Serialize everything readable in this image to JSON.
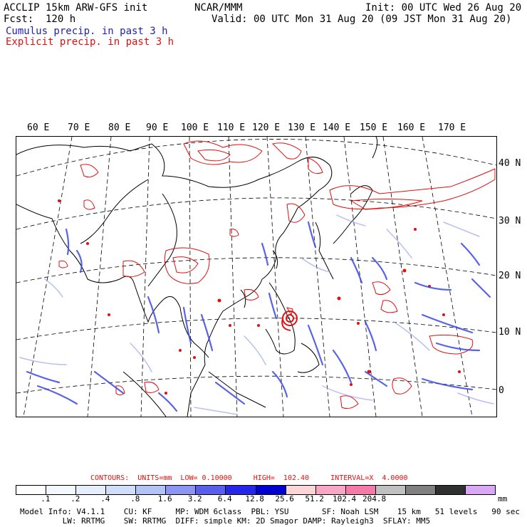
{
  "header": {
    "title": "ACCLIP 15km ARW-GFS init",
    "forecast": "Fcst:  120 h",
    "org": "NCAR/MMM",
    "init": "Init: 00 UTC Wed 26 Aug 20",
    "valid": "Valid: 00 UTC Mon 31 Aug 20 (09 JST Mon 31 Aug 20)",
    "legend_cumulus": "Cumulus precip. in past 3 h",
    "legend_explicit": "Explicit precip. in past 3 h"
  },
  "axes": {
    "longitude_labels": [
      "60 E",
      "70 E",
      "80 E",
      "90 E",
      "100 E",
      "110 E",
      "120 E",
      "130 E",
      "140 E",
      "150 E",
      "160 E",
      "170 E"
    ],
    "latitude_labels": [
      "40 N",
      "30 N",
      "20 N",
      "10 N",
      "0"
    ]
  },
  "contours": "CONTOURS:  UNITS=mm  LOW= 0.10000     HIGH=  102.40     INTERVAL=X  4.0000",
  "colorbar": {
    "colors": [
      "#ffffff",
      "#f3f8fe",
      "#e4eefc",
      "#d0def9",
      "#b4c3f6",
      "#8c96f2",
      "#5a5eec",
      "#2626e8",
      "#0000d0",
      "#fcd6d6",
      "#f7a6c4",
      "#f57aa8",
      "#c0c0c0",
      "#808080",
      "#303030",
      "#d9a8f5"
    ],
    "tick_labels": [
      ".1",
      ".2",
      ".4",
      ".8",
      "1.6",
      "3.2",
      "6.4",
      "12.8",
      "25.6",
      "51.2",
      "102.4",
      "204.8"
    ],
    "unit": "mm"
  },
  "model_info": {
    "line1": "Model Info: V4.1.1    CU: KF     MP: WDM 6class  PBL: YSU       SF: Noah LSM    15 km   51 levels   90 sec",
    "line2": "         LW: RRTMG    SW: RRTMG  DIFF: simple KM: 2D Smagor DAMP: Rayleigh3  SFLAY: MM5"
  }
}
